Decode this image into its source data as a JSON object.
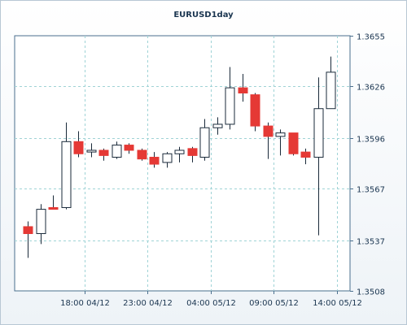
{
  "chart_data": {
    "type": "candlestick",
    "title": "EURUSD1day",
    "xlabel": "",
    "ylabel": "",
    "ylim": [
      1.3508,
      1.3655
    ],
    "y_ticks": [
      1.3508,
      1.3537,
      1.3567,
      1.3596,
      1.3626,
      1.3655
    ],
    "y_tick_labels": [
      "1.3508",
      "1.3537",
      "1.3567",
      "1.3596",
      "1.3626",
      "1.3655"
    ],
    "x_ticks": [
      {
        "label": "18:00 04/12",
        "index": 4.5
      },
      {
        "label": "23:00 04/12",
        "index": 9.5
      },
      {
        "label": "04:00 05/12",
        "index": 14.5
      },
      {
        "label": "09:00 05/12",
        "index": 19.5
      },
      {
        "label": "14:00 05/12",
        "index": 24.5
      }
    ],
    "grid": true,
    "up_color": "#ffffff",
    "down_color": "#e53935",
    "candles": [
      {
        "open": 1.3545,
        "high": 1.3548,
        "low": 1.3527,
        "close": 1.3541
      },
      {
        "open": 1.3541,
        "high": 1.3558,
        "low": 1.3535,
        "close": 1.3555
      },
      {
        "open": 1.3556,
        "high": 1.3563,
        "low": 1.3555,
        "close": 1.3555
      },
      {
        "open": 1.3556,
        "high": 1.3605,
        "low": 1.3555,
        "close": 1.3594
      },
      {
        "open": 1.3594,
        "high": 1.36,
        "low": 1.3585,
        "close": 1.3587
      },
      {
        "open": 1.3588,
        "high": 1.3593,
        "low": 1.3585,
        "close": 1.3589
      },
      {
        "open": 1.3589,
        "high": 1.359,
        "low": 1.3583,
        "close": 1.3586
      },
      {
        "open": 1.3585,
        "high": 1.3594,
        "low": 1.3584,
        "close": 1.3592
      },
      {
        "open": 1.3592,
        "high": 1.3593,
        "low": 1.3587,
        "close": 1.3589
      },
      {
        "open": 1.3589,
        "high": 1.359,
        "low": 1.3583,
        "close": 1.3584
      },
      {
        "open": 1.3585,
        "high": 1.3588,
        "low": 1.3579,
        "close": 1.3581
      },
      {
        "open": 1.3582,
        "high": 1.3588,
        "low": 1.3579,
        "close": 1.3587
      },
      {
        "open": 1.3587,
        "high": 1.3591,
        "low": 1.3582,
        "close": 1.3589
      },
      {
        "open": 1.359,
        "high": 1.3591,
        "low": 1.3582,
        "close": 1.3586
      },
      {
        "open": 1.3585,
        "high": 1.3607,
        "low": 1.3583,
        "close": 1.3602
      },
      {
        "open": 1.3602,
        "high": 1.3608,
        "low": 1.3598,
        "close": 1.3604
      },
      {
        "open": 1.3604,
        "high": 1.3637,
        "low": 1.3601,
        "close": 1.3625
      },
      {
        "open": 1.3625,
        "high": 1.3633,
        "low": 1.3617,
        "close": 1.3622
      },
      {
        "open": 1.3621,
        "high": 1.3622,
        "low": 1.36,
        "close": 1.3603
      },
      {
        "open": 1.3603,
        "high": 1.3605,
        "low": 1.3584,
        "close": 1.3597
      },
      {
        "open": 1.3597,
        "high": 1.3601,
        "low": 1.3586,
        "close": 1.3599
      },
      {
        "open": 1.3599,
        "high": 1.3599,
        "low": 1.3586,
        "close": 1.3587
      },
      {
        "open": 1.3588,
        "high": 1.359,
        "low": 1.3581,
        "close": 1.3585
      },
      {
        "open": 1.3585,
        "high": 1.3631,
        "low": 1.354,
        "close": 1.3613
      },
      {
        "open": 1.3613,
        "high": 1.3643,
        "low": 1.3613,
        "close": 1.3634
      }
    ]
  }
}
